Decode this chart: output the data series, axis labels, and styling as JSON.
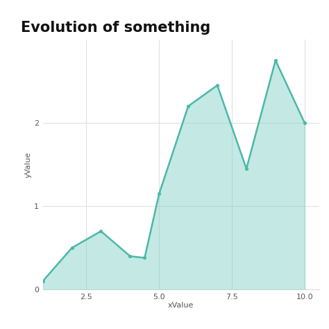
{
  "title": "Evolution of something",
  "xlabel": "xValue",
  "ylabel": "yValue",
  "x": [
    1,
    2,
    3,
    4,
    4.5,
    5,
    6,
    7,
    8,
    9,
    10
  ],
  "y": [
    0.1,
    0.5,
    0.7,
    0.4,
    0.38,
    1.15,
    2.2,
    2.45,
    1.45,
    2.75,
    2.0
  ],
  "line_color": "#4db8a8",
  "fill_color": "#7ecfc4",
  "fill_alpha": 0.45,
  "background_color": "#ffffff",
  "panel_background": "#ffffff",
  "grid_color": "#e0e0e0",
  "title_fontsize": 15,
  "label_fontsize": 8,
  "tick_fontsize": 8,
  "xlim": [
    1.0,
    10.5
  ],
  "ylim": [
    0.0,
    3.0
  ],
  "xticks": [
    2.5,
    5.0,
    7.5,
    10.0
  ],
  "yticks": [
    0,
    1,
    2
  ]
}
